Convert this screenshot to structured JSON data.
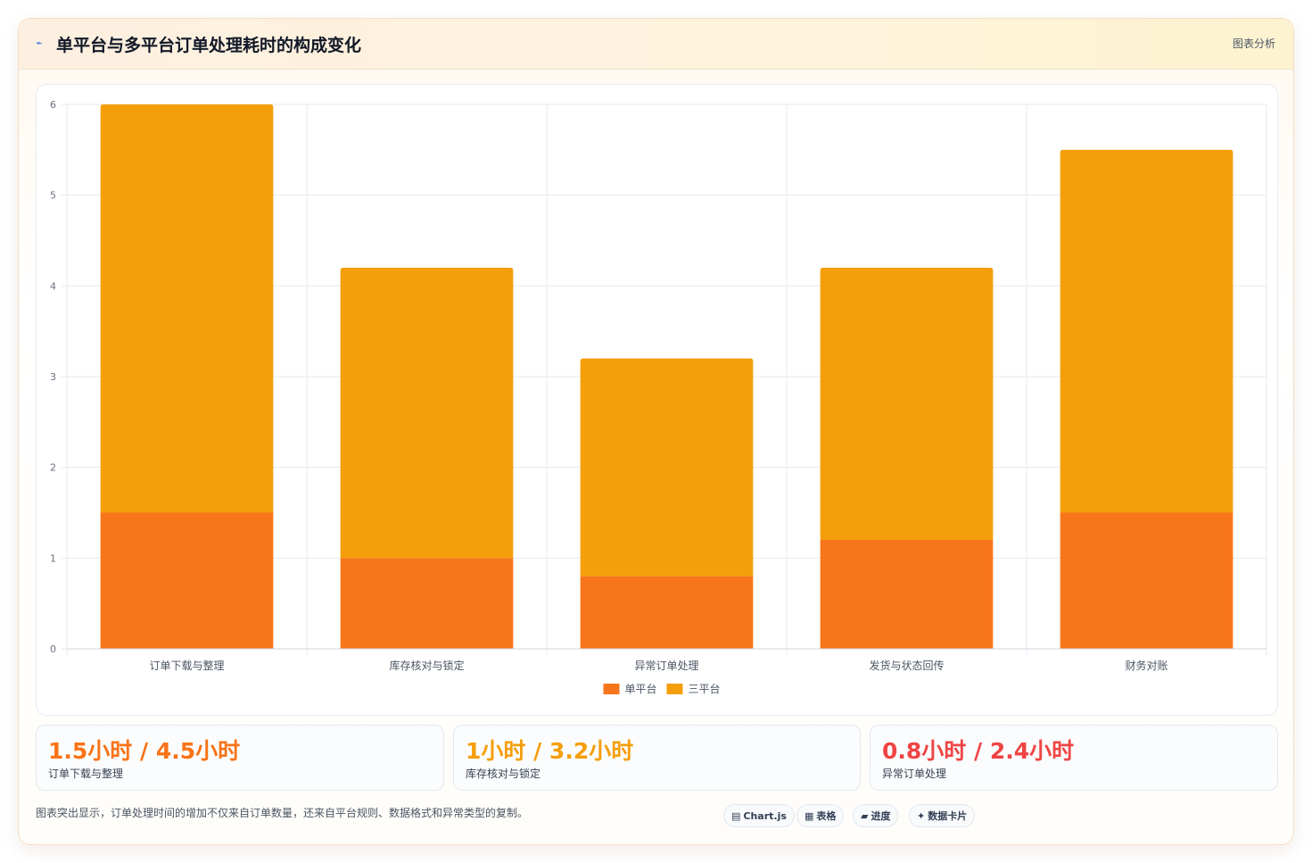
{
  "header": {
    "icon": "chart-icon",
    "title": "单平台与多平台订单处理耗时的构成变化",
    "tag": "图表分析"
  },
  "chart_data": {
    "type": "bar",
    "stacked": true,
    "categories": [
      "订单下载与整理",
      "库存核对与锁定",
      "异常订单处理",
      "发货与状态回传",
      "财务对账"
    ],
    "series": [
      {
        "name": "单平台",
        "values": [
          1.5,
          1.0,
          0.8,
          1.2,
          1.5
        ],
        "color": "#f7761b"
      },
      {
        "name": "三平台",
        "values": [
          4.5,
          3.2,
          2.4,
          3.0,
          4.0
        ],
        "color": "#f59e0b"
      }
    ],
    "ylim": [
      0,
      6
    ],
    "yticks": [
      "0",
      "1",
      "2",
      "3",
      "4",
      "5",
      "6"
    ],
    "legend_position": "bottom",
    "grid": true
  },
  "stats": [
    {
      "value": "1.5小时 / 4.5小时",
      "label": "订单下载与整理",
      "color": "#f97316"
    },
    {
      "value": "1小时 / 3.2小时",
      "label": "库存核对与锁定",
      "color": "#f59e0b"
    },
    {
      "value": "0.8小时 / 2.4小时",
      "label": "异常订单处理",
      "color": "#ef4444"
    }
  ],
  "footer": {
    "note": "图表突出显示，订单处理时间的增加不仅来自订单数量，还来自平台规则、数据格式和异常类型的复制。"
  },
  "chips": [
    {
      "icon": "▤",
      "label": "Chart.js"
    },
    {
      "icon": "▦",
      "label": "表格"
    },
    {
      "icon": "▰",
      "label": "进度"
    },
    {
      "icon": "✦",
      "label": "数据卡片"
    }
  ]
}
